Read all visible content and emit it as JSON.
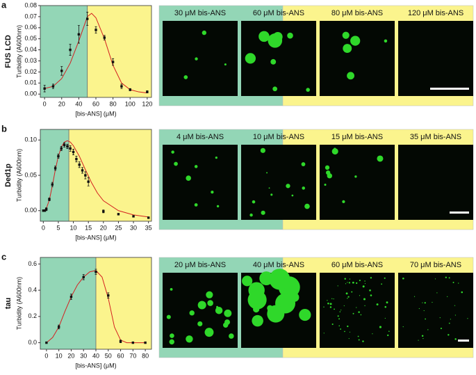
{
  "chart_data": [
    {
      "type": "scatter",
      "panel": "a",
      "title": "FUS LCD",
      "xlabel": "[bis-ANS] (μM)",
      "ylabel": "Turbidity (A600nm)",
      "xlim": [
        -5,
        125
      ],
      "xticks": [
        0,
        20,
        40,
        60,
        80,
        100,
        120
      ],
      "ylim": [
        -0.003,
        0.08
      ],
      "yticks": [
        {
          "value": 0,
          "label": "0.00"
        },
        {
          "value": 0.01,
          "label": "0.01"
        },
        {
          "value": 0.02,
          "label": "0.02"
        },
        {
          "value": 0.03,
          "label": "0.03"
        },
        {
          "value": 0.04,
          "label": "0.04"
        },
        {
          "value": 0.05,
          "label": "0.05"
        },
        {
          "value": 0.06,
          "label": "0.06"
        },
        {
          "value": 0.07,
          "label": "0.07"
        },
        {
          "value": 0.08,
          "label": "0.08"
        }
      ],
      "threshold": 50,
      "left_color": "#93d6b6",
      "right_color": "#fbf48d",
      "points": {
        "color": "#111111",
        "x": [
          0,
          10,
          20,
          30,
          40,
          50,
          60,
          70,
          80,
          90,
          100,
          120
        ],
        "y": [
          0.005,
          0.007,
          0.021,
          0.04,
          0.054,
          0.068,
          0.058,
          0.051,
          0.029,
          0.007,
          0.004,
          0.002
        ],
        "errors": [
          0.003,
          0.002,
          0.004,
          0.005,
          0.008,
          0.006,
          0.003,
          0.002,
          0.003,
          0.002,
          0.001,
          0.001
        ]
      },
      "fit": {
        "color": "#d42020",
        "x": [
          0,
          10,
          20,
          30,
          40,
          50,
          55,
          60,
          70,
          80,
          90,
          100,
          110,
          120
        ],
        "y": [
          0.005,
          0.007,
          0.014,
          0.028,
          0.048,
          0.07,
          0.073,
          0.069,
          0.05,
          0.026,
          0.01,
          0.004,
          0.002,
          0.001
        ]
      },
      "images": [
        "30 μM bis-ANS",
        "60 μM bis-ANS",
        "80 μM bis-ANS",
        "120 μM bis-ANS"
      ]
    },
    {
      "type": "scatter",
      "panel": "b",
      "title": "Ded1p",
      "xlabel": "[bis-ANS] (μM)",
      "ylabel": "Turbidity (A600nm)",
      "xlim": [
        -1,
        36
      ],
      "xticks": [
        0,
        5,
        10,
        15,
        20,
        25,
        30,
        35
      ],
      "ylim": [
        -0.015,
        0.115
      ],
      "yticks": [
        {
          "value": 0,
          "label": "0.00"
        },
        {
          "value": 0.05,
          "label": "0.05"
        },
        {
          "value": 0.1,
          "label": "0.10"
        }
      ],
      "threshold": 8.5,
      "left_color": "#93d6b6",
      "right_color": "#fbf48d",
      "points": {
        "color": "#111111",
        "x": [
          0,
          0.5,
          1,
          2,
          3,
          4,
          5,
          6,
          7,
          8,
          9,
          10,
          11,
          12,
          13,
          14,
          15,
          20,
          25,
          30,
          35
        ],
        "y": [
          0,
          0,
          0.002,
          0.016,
          0.037,
          0.06,
          0.077,
          0.088,
          0.093,
          0.091,
          0.088,
          0.083,
          0.073,
          0.065,
          0.057,
          0.05,
          0.041,
          -0.001,
          -0.005,
          -0.008,
          -0.01
        ],
        "errors": [
          0.001,
          0.001,
          0.002,
          0.002,
          0.003,
          0.003,
          0.003,
          0.003,
          0.003,
          0.003,
          0.004,
          0.004,
          0.004,
          0.004,
          0.004,
          0.005,
          0.006,
          0.002,
          0.001,
          0.001,
          0.001
        ]
      },
      "fit": {
        "color": "#d42020",
        "x": [
          0,
          1,
          2,
          3,
          4,
          5,
          6,
          7,
          8,
          9,
          10,
          12,
          14,
          16,
          18,
          20,
          25,
          30,
          35
        ],
        "y": [
          0,
          0.003,
          0.015,
          0.035,
          0.058,
          0.077,
          0.09,
          0.097,
          0.099,
          0.097,
          0.092,
          0.077,
          0.058,
          0.04,
          0.025,
          0.014,
          0,
          -0.006,
          -0.009
        ]
      },
      "images": [
        "4 μM bis-ANS",
        "10 μM bis-ANS",
        "15 μM bis-ANS",
        "35 μM bis-ANS"
      ]
    },
    {
      "type": "scatter",
      "panel": "c",
      "title": "tau",
      "xlabel": "[bis-ANS] (μM)",
      "ylabel": "Turbidity (A600nm)",
      "xlim": [
        -5,
        85
      ],
      "xticks": [
        0,
        10,
        20,
        30,
        40,
        50,
        60,
        70,
        80
      ],
      "ylim": [
        -0.05,
        0.65
      ],
      "yticks": [
        {
          "value": 0,
          "label": "0.0"
        },
        {
          "value": 0.2,
          "label": "0.2"
        },
        {
          "value": 0.4,
          "label": "0.4"
        },
        {
          "value": 0.6,
          "label": "0.6"
        }
      ],
      "threshold": 40,
      "left_color": "#93d6b6",
      "right_color": "#fbf48d",
      "points": {
        "color": "#111111",
        "x": [
          0,
          10,
          20,
          30,
          40,
          50,
          60,
          70,
          80
        ],
        "y": [
          0,
          0.12,
          0.35,
          0.5,
          0.54,
          0.36,
          0.01,
          0,
          0
        ],
        "errors": [
          0.005,
          0.015,
          0.02,
          0.02,
          0.02,
          0.02,
          0.01,
          0.005,
          0.005
        ]
      },
      "fit": {
        "color": "#d42020",
        "x": [
          0,
          5,
          10,
          15,
          20,
          25,
          30,
          35,
          40,
          45,
          50,
          55,
          60,
          65,
          70,
          80
        ],
        "y": [
          0,
          0.04,
          0.12,
          0.24,
          0.35,
          0.44,
          0.5,
          0.54,
          0.55,
          0.5,
          0.34,
          0.12,
          0.02,
          0,
          0,
          0
        ]
      },
      "images": [
        "20 μM bis-ANS",
        "40 μM bis-ANS",
        "60 μM bis-ANS",
        "70 μM bis-ANS"
      ]
    }
  ]
}
